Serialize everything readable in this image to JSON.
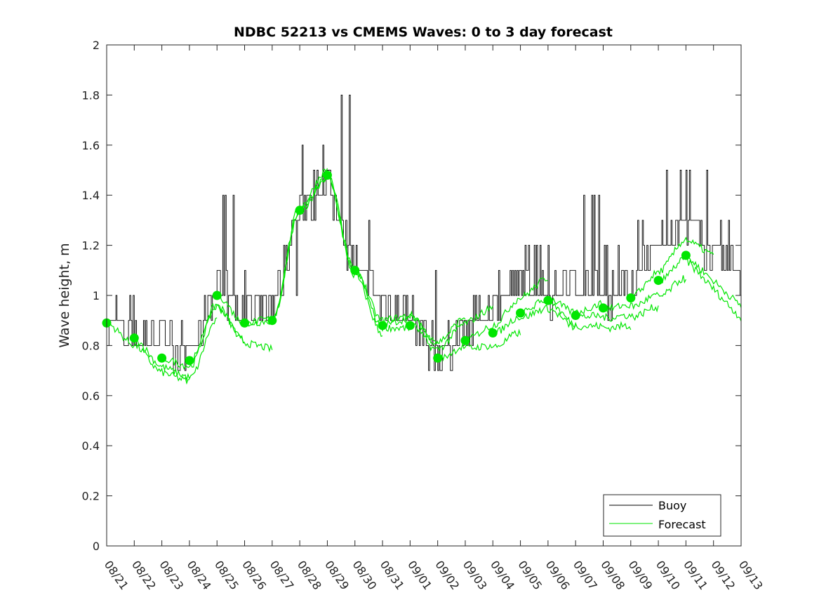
{
  "chart_data": {
    "type": "line",
    "title": "NDBC 52213 vs CMEMS Waves: 0 to 3 day forecast",
    "xlabel": "",
    "ylabel": "Wave height, m",
    "ylim": [
      0,
      2
    ],
    "yticks": [
      0,
      0.2,
      0.4,
      0.6,
      0.8,
      1,
      1.2,
      1.4,
      1.6,
      1.8,
      2
    ],
    "ytick_labels": [
      "0",
      "0.2",
      "0.4",
      "0.6",
      "0.8",
      "1",
      "1.2",
      "1.4",
      "1.6",
      "1.8",
      "2"
    ],
    "x_categories": [
      "08/21",
      "08/22",
      "08/23",
      "08/24",
      "08/25",
      "08/26",
      "08/27",
      "08/28",
      "08/29",
      "08/30",
      "08/31",
      "09/01",
      "09/02",
      "09/03",
      "09/04",
      "09/05",
      "09/06",
      "09/07",
      "09/08",
      "09/09",
      "09/10",
      "09/11",
      "09/12",
      "09/13"
    ],
    "grid": false,
    "legend": {
      "placement": "bottom-right",
      "entries": [
        {
          "name": "Buoy",
          "color": "#000000"
        },
        {
          "name": "Forecast",
          "color": "#00e600"
        }
      ]
    },
    "colors": {
      "buoy": "#000000",
      "forecast": "#00e600"
    },
    "series": [
      {
        "name": "Buoy",
        "daily_base": [
          0.88,
          0.85,
          0.82,
          0.76,
          1.05,
          0.92,
          0.95,
          1.35,
          1.45,
          1.12,
          0.96,
          0.92,
          0.76,
          0.86,
          0.96,
          1.05,
          1.0,
          1.05,
          1.0,
          1.05,
          1.2,
          1.3,
          1.15,
          1.1
        ],
        "daily_peak": [
          1.0,
          0.9,
          0.9,
          0.85,
          1.4,
          1.1,
          1.0,
          1.6,
          1.8,
          1.3,
          1.2,
          1.1,
          0.9,
          0.95,
          1.1,
          1.2,
          1.15,
          1.4,
          1.2,
          1.3,
          1.5,
          1.5,
          1.3,
          1.3
        ]
      },
      {
        "name": "Forecast",
        "analysis_points": {
          "x": [
            "08/21",
            "08/22",
            "08/23",
            "08/24",
            "08/25",
            "08/26",
            "08/27",
            "08/28",
            "08/29",
            "08/30",
            "08/31",
            "09/01",
            "09/02",
            "09/03",
            "09/04",
            "09/05",
            "09/06",
            "09/07",
            "09/08",
            "09/09",
            "09/10",
            "09/11"
          ],
          "y": [
            0.89,
            0.83,
            0.75,
            0.74,
            1.0,
            0.89,
            0.9,
            1.34,
            1.48,
            1.1,
            0.88,
            0.88,
            0.75,
            0.82,
            0.85,
            0.93,
            0.98,
            0.92,
            0.95,
            0.99,
            1.06,
            1.16
          ]
        },
        "forecast_runs": 22,
        "forecast_days": 3
      }
    ]
  }
}
